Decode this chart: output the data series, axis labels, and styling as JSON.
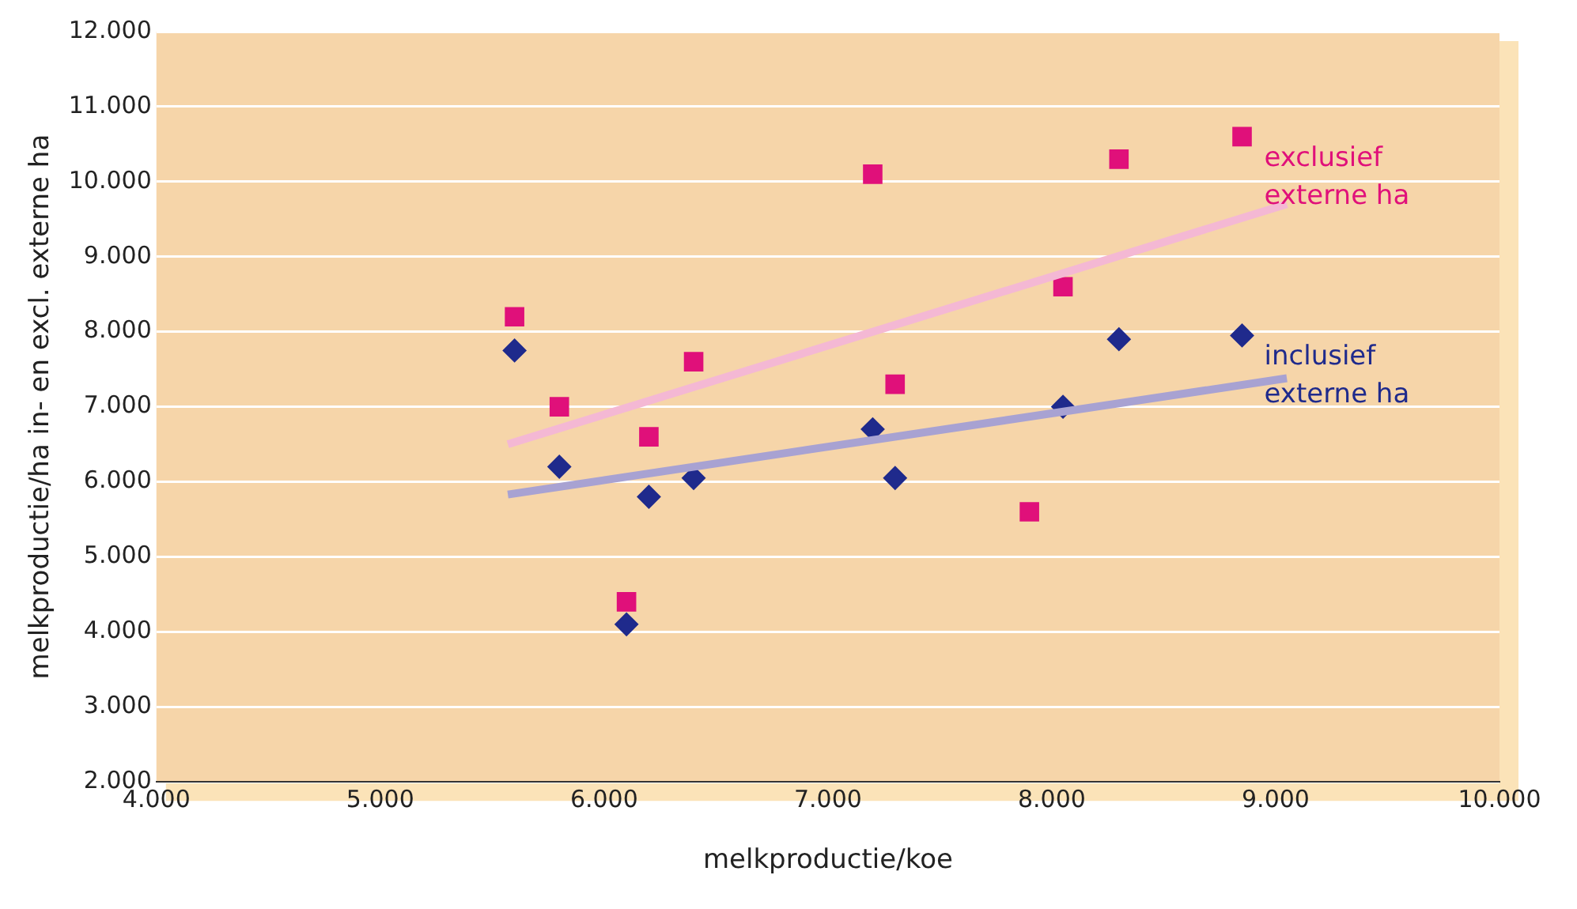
{
  "chart_data": {
    "type": "scatter",
    "xlabel": "melkproductie/koe",
    "ylabel": "melkproductie/ha in- en excl. externe ha",
    "xlim": [
      4000,
      10000
    ],
    "xticks": [
      {
        "value": 4000,
        "label": "4.000"
      },
      {
        "value": 5000,
        "label": "5.000"
      },
      {
        "value": 6000,
        "label": "6.000"
      },
      {
        "value": 7000,
        "label": "7.000"
      },
      {
        "value": 8000,
        "label": "8.000"
      },
      {
        "value": 9000,
        "label": "9.000"
      },
      {
        "value": 10000,
        "label": "10.000"
      }
    ],
    "ylim": [
      2000,
      12000
    ],
    "yticks": [
      {
        "value": 2000,
        "label": "2.000"
      },
      {
        "value": 3000,
        "label": "3.000"
      },
      {
        "value": 4000,
        "label": "4.000"
      },
      {
        "value": 5000,
        "label": "5.000"
      },
      {
        "value": 6000,
        "label": "6.000"
      },
      {
        "value": 7000,
        "label": "7.000"
      },
      {
        "value": 8000,
        "label": "8.000"
      },
      {
        "value": 9000,
        "label": "9.000"
      },
      {
        "value": 10000,
        "label": "10.000"
      },
      {
        "value": 11000,
        "label": "11.000"
      },
      {
        "value": 12000,
        "label": "12.000"
      }
    ],
    "grid": "y",
    "legend": false,
    "series": [
      {
        "type": "line",
        "color": "#f4b8d4",
        "marker": "none",
        "x": [
          5570,
          9050
        ],
        "values": [
          6500,
          9700
        ]
      },
      {
        "type": "line",
        "color": "#a8a2d2",
        "marker": "none",
        "x": [
          5570,
          9050
        ],
        "values": [
          5830,
          7380
        ]
      },
      {
        "name": "exclusief externe ha",
        "color": "#e0107a",
        "marker": "square",
        "x": [
          5600,
          5800,
          6200,
          6400,
          6100,
          7200,
          7300,
          7900,
          8050,
          8300,
          8850
        ],
        "values": [
          8200,
          7000,
          6600,
          7600,
          4400,
          10100,
          7300,
          5600,
          8600,
          10300,
          10600
        ]
      },
      {
        "name": "inclusief externe ha",
        "color": "#1f2a8c",
        "marker": "diamond",
        "x": [
          5600,
          5800,
          6200,
          6400,
          6100,
          7200,
          7300,
          8050,
          8300,
          8850
        ],
        "values": [
          7750,
          6200,
          5800,
          6050,
          4100,
          6700,
          6050,
          7000,
          7900,
          7950
        ]
      }
    ]
  }
}
